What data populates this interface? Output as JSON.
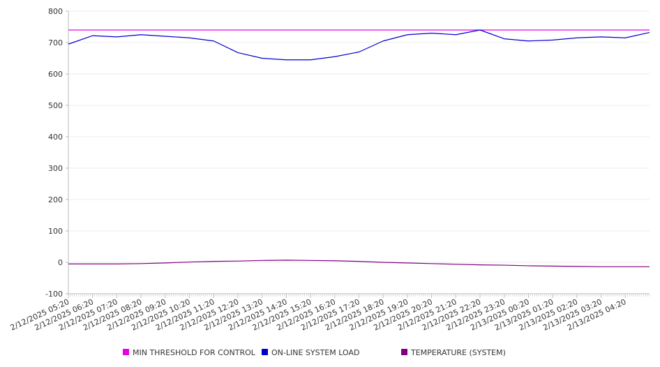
{
  "chart_data": {
    "type": "line",
    "title": "",
    "xlabel": "",
    "ylabel": "",
    "ylim": [
      -100,
      800
    ],
    "yticks": [
      -100,
      0,
      100,
      200,
      300,
      400,
      500,
      600,
      700,
      800
    ],
    "grid": true,
    "legend_position": "bottom",
    "x_tick_labels": [
      "2/12/2025 05:20",
      "2/12/2025 06:20",
      "2/12/2025 07:20",
      "2/12/2025 08:20",
      "2/12/2025 09:20",
      "2/12/2025 10:20",
      "2/12/2025 11:20",
      "2/12/2025 12:20",
      "2/12/2025 13:20",
      "2/12/2025 14:20",
      "2/12/2025 15:20",
      "2/12/2025 16:20",
      "2/12/2025 17:20",
      "2/12/2025 18:20",
      "2/12/2025 19:20",
      "2/12/2025 20:20",
      "2/12/2025 21:20",
      "2/12/2025 22:20",
      "2/12/2025 23:20",
      "2/13/2025 00:20",
      "2/13/2025 01:20",
      "2/13/2025 02:20",
      "2/13/2025 03:20",
      "2/13/2025 04:20"
    ],
    "x_hours": [
      0,
      1,
      2,
      3,
      4,
      5,
      6,
      7,
      8,
      9,
      10,
      11,
      12,
      13,
      14,
      15,
      16,
      17,
      18,
      19,
      20,
      21,
      22,
      23,
      24
    ],
    "series": [
      {
        "name": "MIN THRESHOLD FOR CONTROL",
        "color": "#e600e6",
        "values": [
          740,
          740,
          740,
          740,
          740,
          740,
          740,
          740,
          740,
          740,
          740,
          740,
          740,
          740,
          740,
          740,
          740,
          740,
          740,
          740,
          740,
          740,
          740,
          740,
          740
        ]
      },
      {
        "name": "ON-LINE SYSTEM LOAD",
        "color": "#0000cc",
        "values": [
          695,
          722,
          718,
          725,
          720,
          715,
          705,
          668,
          650,
          645,
          645,
          655,
          670,
          705,
          725,
          730,
          725,
          740,
          712,
          705,
          708,
          715,
          718,
          715,
          732
        ]
      },
      {
        "name": "TEMPERATURE (SYSTEM)",
        "color": "#800080",
        "values": [
          -5,
          -5,
          -5,
          -4,
          -2,
          1,
          3,
          4,
          6,
          7,
          6,
          5,
          3,
          0,
          -2,
          -4,
          -6,
          -8,
          -9,
          -11,
          -12,
          -13,
          -14,
          -14,
          -14
        ]
      }
    ]
  },
  "legend": {
    "items": [
      {
        "label": "MIN THRESHOLD FOR CONTROL",
        "color": "#e600e6"
      },
      {
        "label": "ON-LINE SYSTEM LOAD",
        "color": "#0000cc"
      },
      {
        "label": "TEMPERATURE (SYSTEM)",
        "color": "#800080"
      }
    ]
  }
}
